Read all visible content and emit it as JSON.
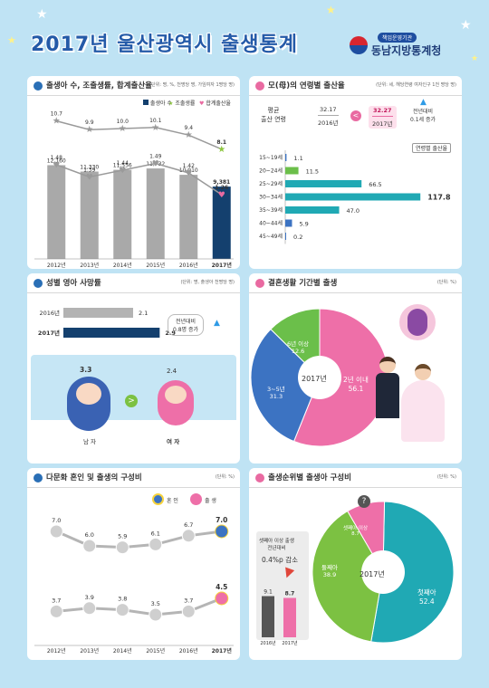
{
  "header": {
    "title": "2017년 울산광역시 출생통계",
    "agency_small": "책임운영기관",
    "agency": "동남지방통계청"
  },
  "p1": {
    "title": "출생아 수, 조출생률, 합계출산율",
    "unit": "(단위: 명, %, 천명당 명, 가임여자 1명당 명)",
    "legend": [
      "출생아 수",
      "조출생률",
      "합계출산율"
    ],
    "chart_data": {
      "type": "bar",
      "categories": [
        "2012년",
        "2013년",
        "2014년",
        "2015년",
        "2016년",
        "2017년"
      ],
      "births": [
        12160,
        11330,
        11556,
        11732,
        10910,
        9381
      ],
      "births_labels": [
        "12,160",
        "11,330",
        "11,556",
        "11,732",
        "10,910",
        "9,381"
      ],
      "crude_birth_rate": [
        10.7,
        9.9,
        10.0,
        10.1,
        9.4,
        8.1
      ],
      "crude_labels": [
        "10.7",
        "9.9",
        "10.0",
        "10.1",
        "9.4",
        "8.1"
      ],
      "tfr": [
        1.48,
        1.39,
        1.44,
        1.49,
        1.42,
        1.26
      ],
      "tfr_labels": [
        "1.48",
        "1.39",
        "1.44",
        "1.49",
        "1.42",
        "1.26"
      ]
    },
    "colors": {
      "bar": "#a9a9a9",
      "bar_last": "#14406e",
      "crude": "#9a9a9a",
      "crude_last": "#8dc63f",
      "tfr": "#9a9a9a",
      "tfr_last": "#e96aa1"
    }
  },
  "p2": {
    "title": "모(母)의 연령별 출산율",
    "unit": "(단위: 세, 해당연령 여자인구 1천 명당 명)",
    "avg_label_1": "평균",
    "avg_label_2": "출산 연령",
    "val_2016": "32.17",
    "year_2016": "2016년",
    "val_2017": "32.27",
    "year_2017": "2017년",
    "diff_1": "전년대비",
    "diff_2": "0.1세 증가",
    "legend": "연령별 출산율",
    "chart_data": {
      "type": "bar",
      "categories": [
        "15~19세",
        "20~24세",
        "25~29세",
        "30~34세",
        "35~39세",
        "40~44세",
        "45~49세"
      ],
      "values": [
        1.1,
        11.5,
        66.5,
        117.8,
        47.0,
        5.9,
        0.2
      ],
      "labels": [
        "1.1",
        "11.5",
        "66.5",
        "117.8",
        "47.0",
        "5.9",
        "0.2"
      ]
    }
  },
  "p3": {
    "title": "성별 영아 사망률",
    "unit": "(단위: 명, 출생아 천명당 명)",
    "rows": [
      {
        "year": "2016년",
        "value": "2.1"
      },
      {
        "year": "2017년",
        "value": "2.9"
      }
    ],
    "chart_data": {
      "type": "bar",
      "categories": [
        "2016년",
        "2017년"
      ],
      "values": [
        2.1,
        2.9
      ]
    },
    "diff_1": "전년대비",
    "diff_2": "0.8명 증가",
    "male_value": "3.3",
    "female_value": "2.4",
    "male": "남 자",
    "female": "여 자"
  },
  "p4": {
    "title": "결혼생활 기간별 출생",
    "unit": "(단위: %)",
    "center": "2017년",
    "chart_data": {
      "type": "pie",
      "labels": [
        "2년 이내",
        "3~5년",
        "6년 이상"
      ],
      "values": [
        56.1,
        31.3,
        12.6
      ]
    },
    "slice_labels": [
      {
        "name": "2년 이내",
        "value": "56.1"
      },
      {
        "name": "3~5년",
        "value": "31.3"
      },
      {
        "name": "6년 이상",
        "value": "12.6"
      }
    ],
    "colors": [
      "#ee6fa8",
      "#3c73c2",
      "#6bbf4a"
    ]
  },
  "p5": {
    "title": "다문화 혼인 및 출생의 구성비",
    "unit": "(단위: %)",
    "legend": [
      "혼 인",
      "출 생"
    ],
    "chart_data": {
      "type": "line",
      "categories": [
        "2012년",
        "2013년",
        "2014년",
        "2015년",
        "2016년",
        "2017년"
      ],
      "series": [
        {
          "name": "혼 인",
          "values": [
            7.0,
            6.0,
            5.9,
            6.1,
            6.7,
            7.0
          ]
        },
        {
          "name": "출 생",
          "values": [
            3.7,
            3.9,
            3.8,
            3.5,
            3.7,
            4.5
          ]
        }
      ]
    },
    "marriage_labels": [
      "7.0",
      "6.0",
      "5.9",
      "6.1",
      "6.7",
      "7.0"
    ],
    "birth_labels": [
      "3.7",
      "3.9",
      "3.8",
      "3.5",
      "3.7",
      "4.5"
    ]
  },
  "p6": {
    "title": "출생순위별 출생아 구성비",
    "unit": "(단위: %)",
    "center": "2017년",
    "note_1": "셋째아 이상 출생",
    "note_2": "전년대비",
    "note_3": "0.4%p 감소",
    "mini": {
      "categories": [
        "2016년",
        "2017년"
      ],
      "values": [
        9.1,
        8.7
      ],
      "labels": [
        "9.1",
        "8.7"
      ]
    },
    "chart_data": {
      "type": "pie",
      "labels": [
        "첫째아",
        "둘째아",
        "셋째아 이상"
      ],
      "values": [
        52.4,
        38.9,
        8.7
      ]
    },
    "slice_labels": [
      {
        "name": "첫째아",
        "value": "52.4"
      },
      {
        "name": "둘째아",
        "value": "38.9"
      },
      {
        "name": "셋째아 이상",
        "value": "8.7"
      }
    ],
    "colors": [
      "#20a9b4",
      "#7cc142",
      "#ee6fa8"
    ]
  }
}
